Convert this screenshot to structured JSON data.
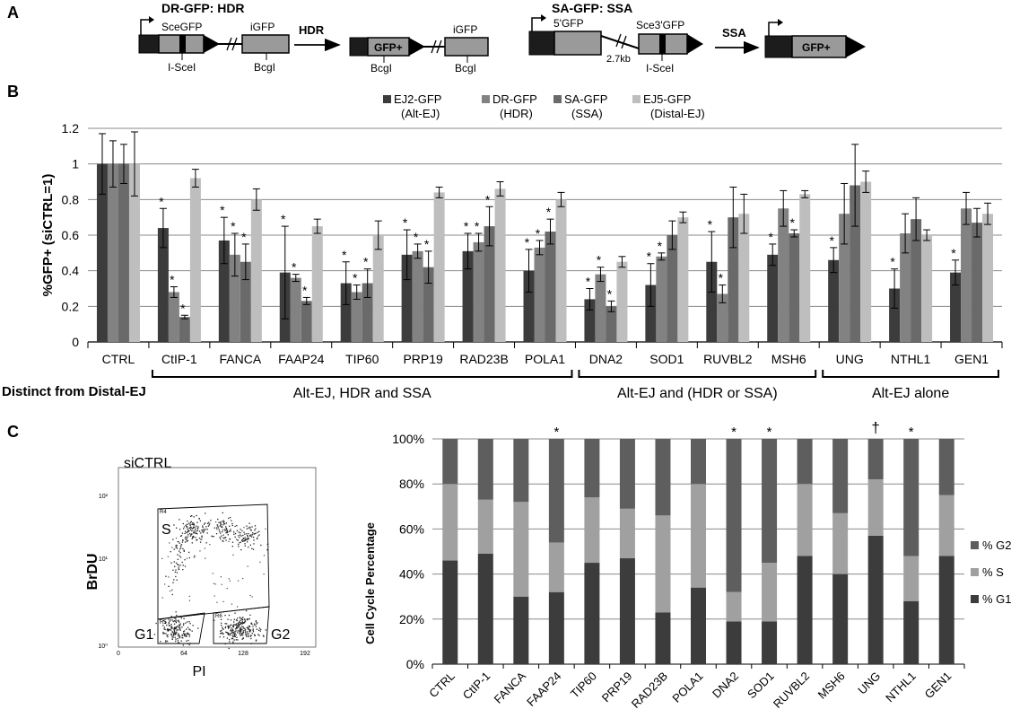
{
  "panel_a": {
    "letter": "A",
    "dr": {
      "title": "DR-GFP: HDR",
      "sce_label": "SceGFP",
      "igfp_label": "iGFP",
      "isce_label": "I-SceI",
      "bcg_label": "BcgI",
      "arrow_label": "HDR",
      "product_label": "GFP+",
      "product_igfp": "iGFP",
      "product_bcg1": "BcgI",
      "product_bcg2": "BcgI"
    },
    "sa": {
      "title": "SA-GFP: SSA",
      "five_label": "5'GFP",
      "sce3_label": "Sce3'GFP",
      "kb_label": "2.7kb",
      "isce_label": "I-SceI",
      "arrow_label": "SSA",
      "product_label": "GFP+"
    }
  },
  "panel_b": {
    "letter": "B",
    "distinct_label": "Distinct from Distal-EJ",
    "groups": [
      {
        "label": "Alt-EJ, HDR and SSA",
        "from": 1,
        "to": 7
      },
      {
        "label": "Alt-EJ and (HDR or SSA)",
        "from": 8,
        "to": 11
      },
      {
        "label": "Alt-EJ alone",
        "from": 12,
        "to": 14
      }
    ],
    "significance_symbol": "*"
  },
  "panel_c": {
    "letter": "C",
    "flow": {
      "title": "siCTRL",
      "ylabel": "BrDU",
      "xlabel": "PI",
      "gate_s": "S",
      "gate_g1": "G1",
      "gate_g2": "G2",
      "yticks": [
        "10²",
        "10¹",
        "10⁰"
      ],
      "xticks": [
        "0",
        "64",
        "128",
        "192"
      ],
      "gate_codes": [
        "R4",
        "R5",
        "R6"
      ]
    }
  },
  "colors": {
    "ej2": "#3c3c3c",
    "dr": "#828282",
    "sa": "#6a6a6a",
    "ej5": "#bebebe",
    "g1": "#3c3c3c",
    "s": "#a0a0a0",
    "g2": "#5e5e5e"
  },
  "chart_data": [
    {
      "type": "bar",
      "title": "",
      "ylabel": "%GFP+ (siCTRL=1)",
      "ylim": [
        0,
        1.2
      ],
      "yticks": [
        0,
        0.2,
        0.4,
        0.6,
        0.8,
        1,
        1.2
      ],
      "grid": true,
      "legend": "top-center",
      "categories": [
        "CTRL",
        "CtIP-1",
        "FANCA",
        "FAAP24",
        "TIP60",
        "PRP19",
        "RAD23B",
        "POLA1",
        "DNA2",
        "SOD1",
        "RUVBL2",
        "MSH6",
        "UNG",
        "NTHL1",
        "GEN1"
      ],
      "series": [
        {
          "name": "EJ2-GFP",
          "sub": "(Alt-EJ)",
          "values": [
            1.0,
            0.64,
            0.57,
            0.39,
            0.33,
            0.49,
            0.51,
            0.4,
            0.24,
            0.32,
            0.45,
            0.49,
            0.46,
            0.3,
            0.39
          ],
          "errors": [
            0.17,
            0.11,
            0.13,
            0.26,
            0.12,
            0.14,
            0.1,
            0.12,
            0.06,
            0.12,
            0.17,
            0.06,
            0.07,
            0.11,
            0.07
          ],
          "sig": [
            false,
            true,
            true,
            true,
            true,
            true,
            true,
            true,
            true,
            true,
            true,
            true,
            true,
            true,
            true
          ]
        },
        {
          "name": "DR-GFP",
          "sub": "(HDR)",
          "values": [
            1.0,
            0.28,
            0.49,
            0.36,
            0.28,
            0.51,
            0.56,
            0.53,
            0.38,
            0.48,
            0.27,
            0.75,
            0.72,
            0.61,
            0.75
          ],
          "errors": [
            0.13,
            0.03,
            0.12,
            0.02,
            0.04,
            0.04,
            0.05,
            0.04,
            0.04,
            0.02,
            0.05,
            0.1,
            0.17,
            0.11,
            0.09
          ],
          "sig": [
            false,
            true,
            true,
            true,
            true,
            true,
            true,
            true,
            true,
            true,
            true,
            false,
            false,
            false,
            false
          ]
        },
        {
          "name": "SA-GFP",
          "sub": "(SSA)",
          "values": [
            1.0,
            0.14,
            0.45,
            0.23,
            0.33,
            0.42,
            0.65,
            0.62,
            0.2,
            0.6,
            0.7,
            0.61,
            0.88,
            0.69,
            0.67
          ],
          "errors": [
            0.11,
            0.01,
            0.1,
            0.02,
            0.08,
            0.09,
            0.11,
            0.07,
            0.03,
            0.08,
            0.17,
            0.02,
            0.23,
            0.12,
            0.08
          ],
          "sig": [
            false,
            true,
            true,
            true,
            true,
            true,
            true,
            true,
            true,
            false,
            false,
            true,
            false,
            false,
            false
          ]
        },
        {
          "name": "EJ5-GFP",
          "sub": "(Distal-EJ)",
          "values": [
            1.0,
            0.92,
            0.8,
            0.65,
            0.6,
            0.84,
            0.86,
            0.8,
            0.45,
            0.7,
            0.72,
            0.83,
            0.9,
            0.6,
            0.72
          ],
          "errors": [
            0.18,
            0.05,
            0.06,
            0.04,
            0.08,
            0.03,
            0.04,
            0.04,
            0.03,
            0.03,
            0.11,
            0.02,
            0.06,
            0.03,
            0.06
          ],
          "sig": [
            false,
            false,
            false,
            false,
            false,
            false,
            false,
            false,
            false,
            false,
            false,
            false,
            false,
            false,
            false
          ]
        }
      ]
    },
    {
      "type": "bar",
      "stacked": "percent",
      "title": "",
      "ylabel": "Cell Cycle Percentage",
      "ylim": [
        0,
        100
      ],
      "yticks": [
        "0%",
        "20%",
        "40%",
        "60%",
        "80%",
        "100%"
      ],
      "grid": true,
      "legend": "right",
      "categories": [
        "CTRL",
        "CtIP-1",
        "FANCA",
        "FAAP24",
        "TIP60",
        "PRP19",
        "RAD23B",
        "POLA1",
        "DNA2",
        "SOD1",
        "RUVBL2",
        "MSH6",
        "UNG",
        "NTHL1",
        "GEN1"
      ],
      "series": [
        {
          "name": "% G1",
          "values": [
            46,
            49,
            30,
            32,
            45,
            47,
            23,
            34,
            19,
            19,
            48,
            40,
            57,
            28,
            48
          ]
        },
        {
          "name": "% S",
          "values": [
            34,
            24,
            42,
            22,
            29,
            22,
            43,
            46,
            13,
            26,
            32,
            27,
            25,
            20,
            27
          ]
        },
        {
          "name": "% G2",
          "values": [
            20,
            27,
            28,
            46,
            26,
            31,
            34,
            20,
            68,
            55,
            20,
            33,
            18,
            52,
            25
          ]
        }
      ],
      "annotations": [
        "",
        "",
        "",
        "*",
        "",
        "",
        "",
        "",
        "*",
        "*",
        "",
        "",
        "†",
        "*",
        ""
      ]
    }
  ]
}
